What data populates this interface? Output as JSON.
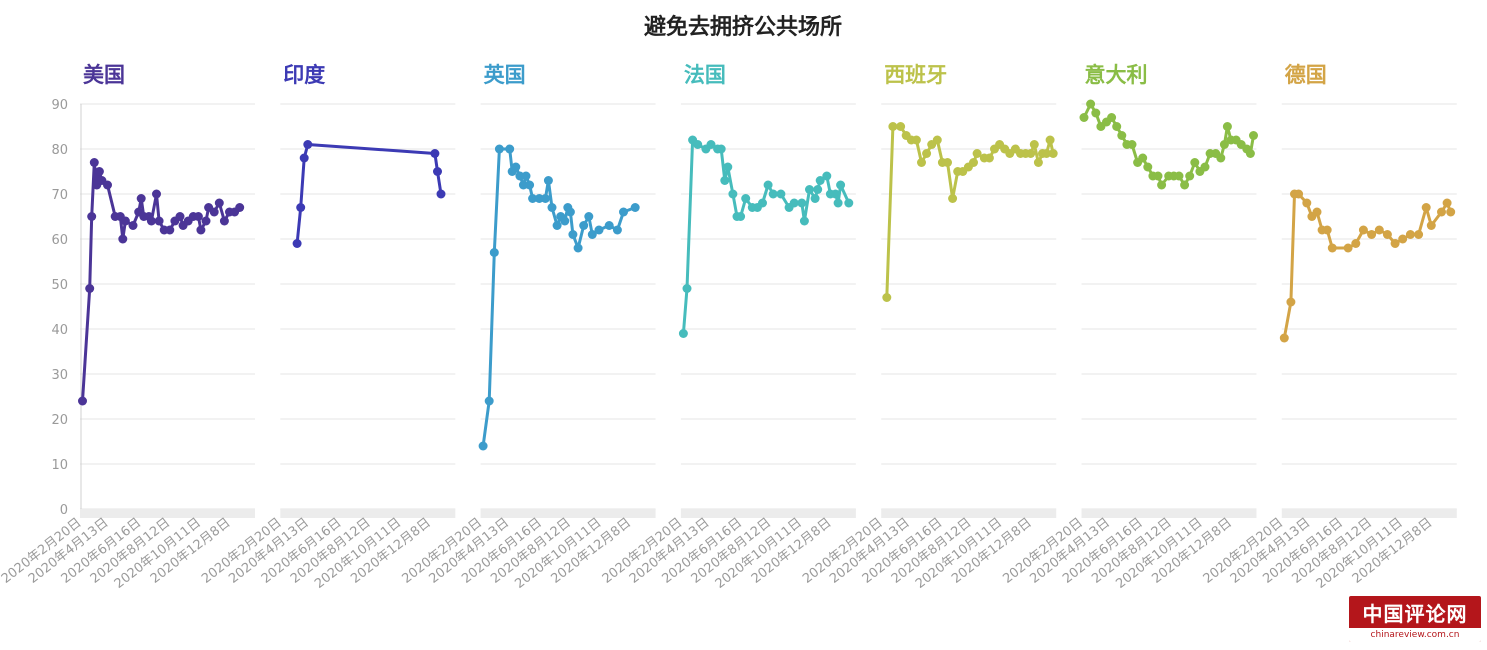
{
  "chart_data": {
    "type": "line",
    "title": "避免去拥挤公共场所",
    "ylim": [
      0,
      90
    ],
    "y_ticks": [
      0,
      10,
      20,
      30,
      40,
      50,
      60,
      70,
      80,
      90
    ],
    "x_ticks": [
      "2020年2月20日",
      "2020年4月13日",
      "2020年6月16日",
      "2020年8月12日",
      "2020年10月11日",
      "2020年12月8日"
    ],
    "x_tick_dates": [
      "2020-02-20",
      "2020-04-13",
      "2020-06-16",
      "2020-08-12",
      "2020-10-11",
      "2020-12-08"
    ],
    "grid": true,
    "legend": "none",
    "series": [
      {
        "name": "美国",
        "color": "#4b3597",
        "points": [
          [
            "2020-02-21",
            24
          ],
          [
            "2020-03-06",
            49
          ],
          [
            "2020-03-10",
            65
          ],
          [
            "2020-03-15",
            77
          ],
          [
            "2020-03-20",
            72
          ],
          [
            "2020-03-25",
            75
          ],
          [
            "2020-03-30",
            73
          ],
          [
            "2020-04-10",
            72
          ],
          [
            "2020-04-25",
            65
          ],
          [
            "2020-05-05",
            65
          ],
          [
            "2020-05-10",
            60
          ],
          [
            "2020-05-15",
            64
          ],
          [
            "2020-05-30",
            63
          ],
          [
            "2020-06-10",
            66
          ],
          [
            "2020-06-15",
            69
          ],
          [
            "2020-06-20",
            65
          ],
          [
            "2020-06-30",
            65
          ],
          [
            "2020-07-05",
            64
          ],
          [
            "2020-07-15",
            70
          ],
          [
            "2020-07-20",
            64
          ],
          [
            "2020-07-30",
            62
          ],
          [
            "2020-08-10",
            62
          ],
          [
            "2020-08-20",
            64
          ],
          [
            "2020-08-30",
            65
          ],
          [
            "2020-09-05",
            63
          ],
          [
            "2020-09-15",
            64
          ],
          [
            "2020-09-25",
            65
          ],
          [
            "2020-10-05",
            65
          ],
          [
            "2020-10-10",
            62
          ],
          [
            "2020-10-20",
            64
          ],
          [
            "2020-10-25",
            67
          ],
          [
            "2020-11-05",
            66
          ],
          [
            "2020-11-15",
            68
          ],
          [
            "2020-11-25",
            64
          ],
          [
            "2020-12-05",
            66
          ],
          [
            "2020-12-15",
            66
          ],
          [
            "2020-12-25",
            67
          ]
        ]
      },
      {
        "name": "印度",
        "color": "#3c3ab4",
        "points": [
          [
            "2020-03-20",
            59
          ],
          [
            "2020-03-27",
            67
          ],
          [
            "2020-04-03",
            78
          ],
          [
            "2020-04-10",
            81
          ],
          [
            "2020-12-15",
            79
          ],
          [
            "2020-12-20",
            75
          ],
          [
            "2020-12-27",
            70
          ]
        ]
      },
      {
        "name": "英国",
        "color": "#3c9ccb",
        "points": [
          [
            "2020-02-21",
            14
          ],
          [
            "2020-03-04",
            24
          ],
          [
            "2020-03-14",
            57
          ],
          [
            "2020-03-24",
            80
          ],
          [
            "2020-04-13",
            80
          ],
          [
            "2020-04-18",
            75
          ],
          [
            "2020-04-25",
            76
          ],
          [
            "2020-05-03",
            74
          ],
          [
            "2020-05-10",
            72
          ],
          [
            "2020-05-15",
            74
          ],
          [
            "2020-05-22",
            72
          ],
          [
            "2020-05-28",
            69
          ],
          [
            "2020-06-10",
            69
          ],
          [
            "2020-06-22",
            69
          ],
          [
            "2020-06-28",
            73
          ],
          [
            "2020-07-05",
            67
          ],
          [
            "2020-07-15",
            63
          ],
          [
            "2020-07-22",
            65
          ],
          [
            "2020-07-30",
            64
          ],
          [
            "2020-08-05",
            67
          ],
          [
            "2020-08-10",
            66
          ],
          [
            "2020-08-15",
            61
          ],
          [
            "2020-08-25",
            58
          ],
          [
            "2020-09-05",
            63
          ],
          [
            "2020-09-15",
            65
          ],
          [
            "2020-09-22",
            61
          ],
          [
            "2020-10-05",
            62
          ],
          [
            "2020-10-25",
            63
          ],
          [
            "2020-11-10",
            62
          ],
          [
            "2020-11-22",
            66
          ],
          [
            "2020-12-15",
            67
          ]
        ]
      },
      {
        "name": "法国",
        "color": "#46bcbc",
        "points": [
          [
            "2020-02-21",
            39
          ],
          [
            "2020-02-28",
            49
          ],
          [
            "2020-03-10",
            82
          ],
          [
            "2020-03-20",
            81
          ],
          [
            "2020-04-05",
            80
          ],
          [
            "2020-04-15",
            81
          ],
          [
            "2020-04-28",
            80
          ],
          [
            "2020-05-05",
            80
          ],
          [
            "2020-05-12",
            73
          ],
          [
            "2020-05-18",
            76
          ],
          [
            "2020-05-28",
            70
          ],
          [
            "2020-06-05",
            65
          ],
          [
            "2020-06-12",
            65
          ],
          [
            "2020-06-22",
            69
          ],
          [
            "2020-07-05",
            67
          ],
          [
            "2020-07-15",
            67
          ],
          [
            "2020-07-25",
            68
          ],
          [
            "2020-08-05",
            72
          ],
          [
            "2020-08-15",
            70
          ],
          [
            "2020-08-30",
            70
          ],
          [
            "2020-09-15",
            67
          ],
          [
            "2020-09-25",
            68
          ],
          [
            "2020-10-10",
            68
          ],
          [
            "2020-10-15",
            64
          ],
          [
            "2020-10-25",
            71
          ],
          [
            "2020-11-05",
            69
          ],
          [
            "2020-11-10",
            71
          ],
          [
            "2020-11-15",
            73
          ],
          [
            "2020-11-28",
            74
          ],
          [
            "2020-12-05",
            70
          ],
          [
            "2020-12-15",
            70
          ],
          [
            "2020-12-20",
            68
          ],
          [
            "2020-12-25",
            72
          ],
          [
            "2021-01-10",
            68
          ]
        ]
      },
      {
        "name": "西班牙",
        "color": "#bcc24a",
        "points": [
          [
            "2020-02-27",
            47
          ],
          [
            "2020-03-10",
            85
          ],
          [
            "2020-03-25",
            85
          ],
          [
            "2020-04-05",
            83
          ],
          [
            "2020-04-15",
            82
          ],
          [
            "2020-04-25",
            82
          ],
          [
            "2020-05-05",
            77
          ],
          [
            "2020-05-15",
            79
          ],
          [
            "2020-05-25",
            81
          ],
          [
            "2020-06-05",
            82
          ],
          [
            "2020-06-15",
            77
          ],
          [
            "2020-06-25",
            77
          ],
          [
            "2020-07-05",
            69
          ],
          [
            "2020-07-15",
            75
          ],
          [
            "2020-07-25",
            75
          ],
          [
            "2020-08-05",
            76
          ],
          [
            "2020-08-15",
            77
          ],
          [
            "2020-08-22",
            79
          ],
          [
            "2020-09-05",
            78
          ],
          [
            "2020-09-15",
            78
          ],
          [
            "2020-09-25",
            80
          ],
          [
            "2020-10-05",
            81
          ],
          [
            "2020-10-15",
            80
          ],
          [
            "2020-10-25",
            79
          ],
          [
            "2020-11-05",
            80
          ],
          [
            "2020-11-15",
            79
          ],
          [
            "2020-11-25",
            79
          ],
          [
            "2020-12-05",
            79
          ],
          [
            "2020-12-12",
            81
          ],
          [
            "2020-12-20",
            77
          ],
          [
            "2020-12-28",
            79
          ],
          [
            "2021-01-05",
            79
          ],
          [
            "2021-01-12",
            82
          ],
          [
            "2021-01-18",
            79
          ]
        ]
      },
      {
        "name": "意大利",
        "color": "#8abd46",
        "points": [
          [
            "2020-02-21",
            87
          ],
          [
            "2020-03-05",
            90
          ],
          [
            "2020-03-15",
            88
          ],
          [
            "2020-03-25",
            85
          ],
          [
            "2020-04-05",
            86
          ],
          [
            "2020-04-15",
            87
          ],
          [
            "2020-04-25",
            85
          ],
          [
            "2020-05-05",
            83
          ],
          [
            "2020-05-15",
            81
          ],
          [
            "2020-05-25",
            81
          ],
          [
            "2020-06-05",
            77
          ],
          [
            "2020-06-15",
            78
          ],
          [
            "2020-06-25",
            76
          ],
          [
            "2020-07-05",
            74
          ],
          [
            "2020-07-15",
            74
          ],
          [
            "2020-07-22",
            72
          ],
          [
            "2020-08-05",
            74
          ],
          [
            "2020-08-15",
            74
          ],
          [
            "2020-08-25",
            74
          ],
          [
            "2020-09-05",
            72
          ],
          [
            "2020-09-15",
            74
          ],
          [
            "2020-09-25",
            77
          ],
          [
            "2020-10-05",
            75
          ],
          [
            "2020-10-15",
            76
          ],
          [
            "2020-10-25",
            79
          ],
          [
            "2020-11-05",
            79
          ],
          [
            "2020-11-15",
            78
          ],
          [
            "2020-11-22",
            81
          ],
          [
            "2020-11-28",
            85
          ],
          [
            "2020-12-05",
            82
          ],
          [
            "2020-12-15",
            82
          ],
          [
            "2020-12-25",
            81
          ],
          [
            "2021-01-05",
            80
          ],
          [
            "2021-01-12",
            79
          ],
          [
            "2021-01-18",
            83
          ]
        ]
      },
      {
        "name": "德国",
        "color": "#d3a446",
        "points": [
          [
            "2020-02-21",
            38
          ],
          [
            "2020-03-05",
            46
          ],
          [
            "2020-03-12",
            70
          ],
          [
            "2020-03-20",
            70
          ],
          [
            "2020-04-05",
            68
          ],
          [
            "2020-04-15",
            65
          ],
          [
            "2020-04-25",
            66
          ],
          [
            "2020-05-05",
            62
          ],
          [
            "2020-05-15",
            62
          ],
          [
            "2020-05-25",
            58
          ],
          [
            "2020-06-25",
            58
          ],
          [
            "2020-07-10",
            59
          ],
          [
            "2020-07-25",
            62
          ],
          [
            "2020-08-10",
            61
          ],
          [
            "2020-08-25",
            62
          ],
          [
            "2020-09-10",
            61
          ],
          [
            "2020-09-25",
            59
          ],
          [
            "2020-10-10",
            60
          ],
          [
            "2020-10-25",
            61
          ],
          [
            "2020-11-10",
            61
          ],
          [
            "2020-11-25",
            67
          ],
          [
            "2020-12-05",
            63
          ],
          [
            "2020-12-25",
            66
          ],
          [
            "2021-01-05",
            68
          ],
          [
            "2021-01-12",
            66
          ]
        ]
      }
    ]
  },
  "watermark": {
    "title": "中国评论网",
    "url": "chinareview.com.cn"
  }
}
